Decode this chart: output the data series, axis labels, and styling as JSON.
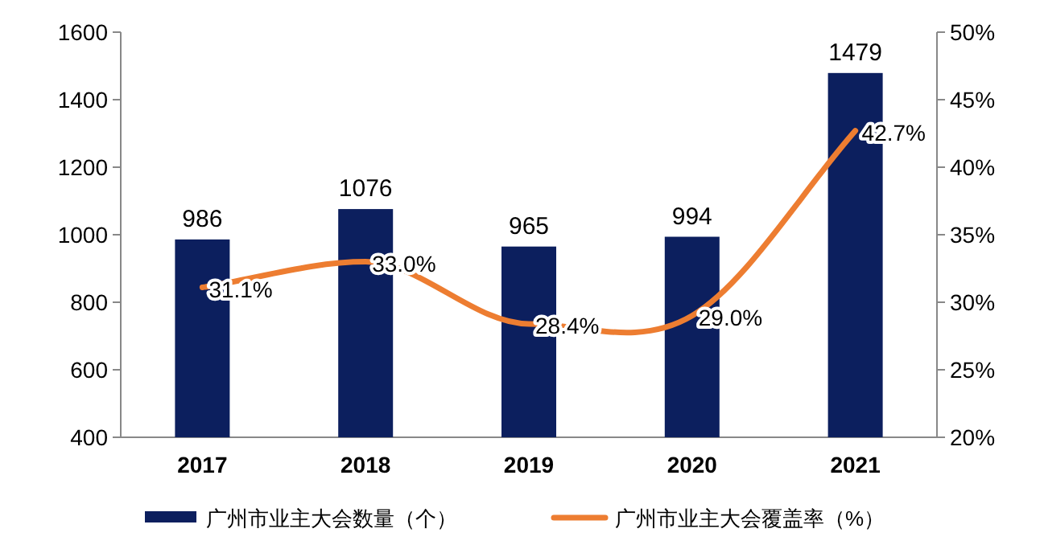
{
  "chart_data": {
    "type": "bar",
    "categories": [
      "2017",
      "2018",
      "2019",
      "2020",
      "2021"
    ],
    "series": [
      {
        "name": "广州市业主大会数量（个）",
        "color": "#0c1f5e",
        "values": [
          986,
          1076,
          965,
          994,
          1479
        ],
        "value_labels": [
          "986",
          "1076",
          "965",
          "994",
          "1479"
        ]
      },
      {
        "name": "广州市业主大会覆盖率（%）",
        "type": "line",
        "axis": "y2",
        "color": "#ed7d31",
        "values": [
          31.1,
          33.0,
          28.4,
          29.0,
          42.7
        ],
        "value_labels": [
          "31.1%",
          "33.0%",
          "28.4%",
          "29.0%",
          "42.7%"
        ]
      }
    ],
    "ylim": [
      400,
      1600
    ],
    "yticks": [
      400,
      600,
      800,
      1000,
      1200,
      1400,
      1600
    ],
    "y2lim": [
      20,
      50
    ],
    "y2ticks": [
      {
        "value": 20,
        "label": "20%"
      },
      {
        "value": 25,
        "label": "25%"
      },
      {
        "value": 30,
        "label": "30%"
      },
      {
        "value": 35,
        "label": "35%"
      },
      {
        "value": 40,
        "label": "40%"
      },
      {
        "value": 45,
        "label": "45%"
      },
      {
        "value": 50,
        "label": "50%"
      }
    ],
    "grid": false,
    "legend": "bottom",
    "marker": "none",
    "line_style": "solid"
  }
}
